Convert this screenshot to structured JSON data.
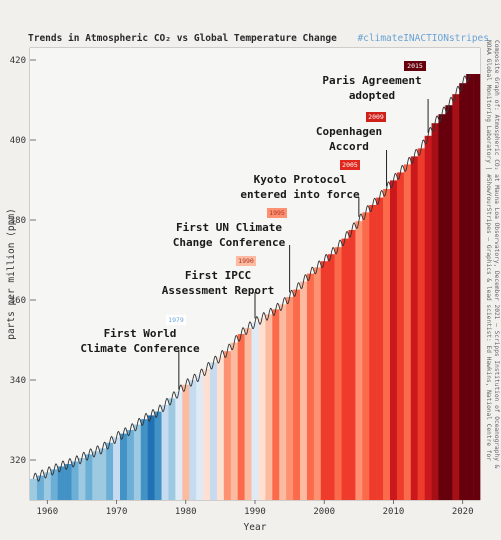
{
  "header": {
    "title": "Trends in Atmospheric CO₂ vs Global Temperature Change",
    "tag": "#climateINACTIONstripes"
  },
  "credit": {
    "line1": "Composite Graph of: Atmospheric CO₂ at Mauna Loa Observatory, December 2021 — Scripps Institution of Oceanography &",
    "line2": "NOAA Global Monitoring Laboratory | #ShowYourStripes — Graphics & lead scientist: Ed Hawkins, National Centre for"
  },
  "chart_data": {
    "type": "line",
    "xlabel": "Year",
    "ylabel": "parts per million (ppm)",
    "xlim": [
      1957.5,
      2022.5
    ],
    "ylim": [
      310,
      423
    ],
    "xticks": [
      1960,
      1970,
      1980,
      1990,
      2000,
      2010,
      2020
    ],
    "yticks": [
      320,
      340,
      360,
      380,
      400,
      420
    ],
    "series": [
      {
        "x": [
          1958,
          1960,
          1962,
          1964,
          1966,
          1968,
          1970,
          1972,
          1974,
          1976,
          1978,
          1980,
          1982,
          1984,
          1986,
          1988,
          1990,
          1992,
          1994,
          1996,
          1998,
          2000,
          2002,
          2004,
          2006,
          2008,
          2010,
          2012,
          2014,
          2016,
          2018,
          2020,
          2021
        ],
        "y": [
          315.3,
          316.9,
          318.4,
          319.6,
          321.4,
          322.9,
          325.7,
          327.5,
          330.2,
          332.1,
          335.4,
          338.8,
          341.1,
          344.4,
          347.2,
          351.5,
          354.4,
          356.4,
          358.9,
          362.6,
          366.6,
          369.7,
          373.2,
          377.5,
          381.9,
          385.6,
          389.9,
          393.9,
          397.9,
          404.2,
          408.7,
          414.2,
          416.5
        ]
      }
    ],
    "stripes": {
      "start_year": 1958,
      "colors": [
        "#9ecae1",
        "#6baed6",
        "#9ecae1",
        "#6baed6",
        "#4292c6",
        "#4292c6",
        "#6baed6",
        "#9ecae1",
        "#6baed6",
        "#9ecae1",
        "#9ecae1",
        "#6baed6",
        "#c6dbef",
        "#4292c6",
        "#6baed6",
        "#9ecae1",
        "#4292c6",
        "#2171b5",
        "#4292c6",
        "#c6dbef",
        "#9ecae1",
        "#deebf7",
        "#fcbba1",
        "#c6dbef",
        "#deebf7",
        "#fee0d2",
        "#c6dbef",
        "#fee0d2",
        "#fc9272",
        "#fcbba1",
        "#fb6a4a",
        "#fcbba1",
        "#deebf7",
        "#fee0d2",
        "#fcbba1",
        "#fb6a4a",
        "#fcbba1",
        "#fc9272",
        "#fb6a4a",
        "#fcbba1",
        "#fb6a4a",
        "#fc9272",
        "#ef3b2c",
        "#ef3b2c",
        "#fb6a4a",
        "#ef3b2c",
        "#ef3b2c",
        "#fc9272",
        "#fb6a4a",
        "#ef3b2c",
        "#ef3b2c",
        "#fb6a4a",
        "#cb181d",
        "#ef3b2c",
        "#fb6a4a",
        "#cb181d",
        "#ef3b2c",
        "#cb181d",
        "#a50f15",
        "#67000d",
        "#67000d",
        "#a50f15",
        "#67000d",
        "#67000d",
        "#67000d"
      ]
    },
    "annotations": [
      {
        "year": "1979",
        "text": [
          "First World",
          "Climate Conference"
        ],
        "x": 1979,
        "y": 336.6,
        "badge_color": "#ffffff",
        "year_color": "#6aa3d6"
      },
      {
        "year": "1990",
        "text": [
          "First IPCC",
          "Assessment Report"
        ],
        "x": 1990,
        "y": 354.4,
        "badge_color": "#fcbba1",
        "year_color": "#b03020"
      },
      {
        "year": "1995",
        "text": [
          "First UN Climate",
          "Change Conference"
        ],
        "x": 1995,
        "y": 360.9,
        "badge_color": "#fc9272",
        "year_color": "#b03020"
      },
      {
        "year": "2005",
        "text": [
          "Kyoto Protocol",
          "entered into force"
        ],
        "x": 2005,
        "y": 379.8,
        "badge_color": "#e0281e",
        "year_color": "#ffffff"
      },
      {
        "year": "2009",
        "text": [
          "Copenhagen",
          "Accord"
        ],
        "x": 2009,
        "y": 387.4,
        "badge_color": "#d0201a",
        "year_color": "#ffffff"
      },
      {
        "year": "2015",
        "text": [
          "Paris Agreement",
          "adopted"
        ],
        "x": 2015,
        "y": 400.8,
        "badge_color": "#67000d",
        "year_color": "#ffffff"
      }
    ]
  }
}
